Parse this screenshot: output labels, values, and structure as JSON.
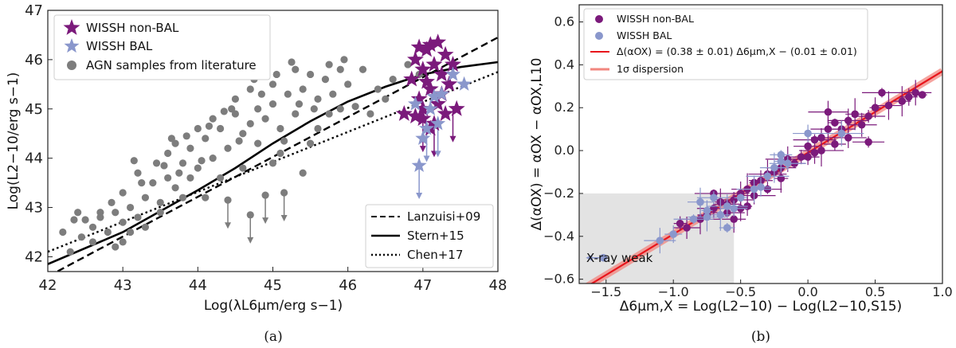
{
  "colors": {
    "nonbal": "#7b1a7b",
    "bal": "#8a97cc",
    "agn": "#7d7d7d",
    "fit": "#e8151c",
    "disp": "#f2867f",
    "xray_box": "#e3e3e3"
  },
  "chart_data": [
    {
      "type": "scatter",
      "panel_label": "(a)",
      "xlabel": "Log(λL6μm/erg s−1)",
      "ylabel": "Log(L2−10/erg s−1)",
      "xlim": [
        42,
        48
      ],
      "ylim": [
        41.7,
        47
      ],
      "xticks": [
        "42",
        "43",
        "44",
        "45",
        "46",
        "47",
        "48"
      ],
      "yticks": [
        "42",
        "43",
        "44",
        "45",
        "46",
        "47"
      ],
      "legend": [
        "WISSH non-BAL",
        "WISSH BAL",
        "AGN samples from literature"
      ],
      "lines_legend": [
        "Lanzuisi+09",
        "Stern+15",
        "Chen+17"
      ],
      "lines": [
        {
          "name": "Lanzuisi+09",
          "style": "dashed",
          "x": [
            42,
            48
          ],
          "y": [
            41.6,
            46.45
          ]
        },
        {
          "name": "Stern+15",
          "style": "solid",
          "x": [
            42,
            43,
            44,
            44.5,
            45,
            45.5,
            46,
            46.5,
            47,
            47.5,
            48
          ],
          "y": [
            41.85,
            42.5,
            43.35,
            43.8,
            44.3,
            44.75,
            45.15,
            45.45,
            45.7,
            45.85,
            45.95
          ]
        },
        {
          "name": "Chen+17",
          "style": "dotted",
          "x": [
            42,
            48
          ],
          "y": [
            42.1,
            45.75
          ]
        }
      ],
      "agn_upper_limits": [
        [
          44.4,
          43.15
        ],
        [
          44.9,
          43.25
        ],
        [
          44.7,
          42.85
        ],
        [
          45.15,
          43.3
        ]
      ],
      "series": [
        {
          "name": "AGN samples from literature",
          "marker": "circle",
          "points": [
            [
              42.3,
              42.1
            ],
            [
              42.45,
              42.4
            ],
            [
              42.4,
              42.9
            ],
            [
              42.6,
              42.6
            ],
            [
              42.7,
              42.8
            ],
            [
              42.5,
              42.75
            ],
            [
              42.8,
              42.5
            ],
            [
              42.9,
              42.9
            ],
            [
              43.0,
              42.7
            ],
            [
              42.85,
              43.1
            ],
            [
              43.1,
              43.0
            ],
            [
              43.2,
              42.8
            ],
            [
              43.0,
              43.3
            ],
            [
              43.3,
              43.2
            ],
            [
              43.1,
              42.5
            ],
            [
              43.4,
              43.5
            ],
            [
              43.5,
              43.1
            ],
            [
              43.6,
              43.6
            ],
            [
              43.2,
              43.7
            ],
            [
              43.45,
              43.9
            ],
            [
              43.7,
              43.4
            ],
            [
              43.8,
              43.9
            ],
            [
              43.9,
              43.6
            ],
            [
              43.6,
              44.1
            ],
            [
              43.7,
              44.3
            ],
            [
              43.9,
              44.2
            ],
            [
              44.0,
              43.8
            ],
            [
              44.1,
              44.4
            ],
            [
              44.2,
              44.0
            ],
            [
              44.0,
              44.6
            ],
            [
              44.3,
              44.6
            ],
            [
              44.4,
              44.2
            ],
            [
              44.2,
              44.8
            ],
            [
              44.5,
              44.9
            ],
            [
              44.6,
              44.5
            ],
            [
              44.7,
              44.7
            ],
            [
              44.5,
              45.2
            ],
            [
              44.8,
              45.0
            ],
            [
              44.9,
              44.8
            ],
            [
              44.7,
              45.4
            ],
            [
              45.0,
              45.1
            ],
            [
              45.1,
              44.6
            ],
            [
              45.0,
              45.5
            ],
            [
              45.2,
              45.3
            ],
            [
              45.3,
              44.9
            ],
            [
              45.4,
              45.4
            ],
            [
              45.5,
              45.7
            ],
            [
              45.6,
              45.2
            ],
            [
              45.3,
              45.8
            ],
            [
              45.7,
              45.6
            ],
            [
              45.8,
              45.3
            ],
            [
              45.9,
              45.8
            ],
            [
              45.6,
              44.6
            ],
            [
              45.5,
              44.3
            ],
            [
              45.4,
              43.7
            ],
            [
              45.1,
              44.1
            ],
            [
              45.0,
              43.9
            ],
            [
              44.8,
              44.3
            ],
            [
              44.6,
              43.8
            ],
            [
              44.3,
              43.6
            ],
            [
              44.1,
              43.2
            ],
            [
              43.8,
              43.2
            ],
            [
              43.5,
              42.9
            ],
            [
              43.3,
              42.6
            ],
            [
              42.9,
              42.2
            ],
            [
              42.6,
              42.3
            ],
            [
              43.0,
              42.3
            ],
            [
              42.7,
              42.9
            ],
            [
              43.25,
              43.5
            ],
            [
              43.55,
              43.85
            ],
            [
              43.85,
              44.45
            ],
            [
              44.15,
              44.65
            ],
            [
              44.45,
              45.0
            ],
            [
              44.75,
              45.6
            ],
            [
              45.05,
              45.7
            ],
            [
              45.25,
              45.95
            ],
            [
              45.75,
              45.9
            ],
            [
              46.0,
              45.5
            ],
            [
              46.2,
              45.8
            ],
            [
              46.4,
              45.4
            ],
            [
              46.5,
              45.2
            ],
            [
              46.6,
              45.6
            ],
            [
              46.3,
              44.9
            ],
            [
              46.1,
              45.05
            ],
            [
              45.9,
              45.0
            ],
            [
              46.8,
              45.9
            ],
            [
              46.95,
              45.7
            ],
            [
              45.95,
              46.0
            ],
            [
              42.2,
              42.5
            ],
            [
              42.35,
              42.75
            ],
            [
              43.15,
              43.95
            ],
            [
              43.65,
              44.4
            ],
            [
              44.35,
              44.95
            ],
            [
              44.85,
              45.3
            ],
            [
              45.35,
              45.1
            ],
            [
              45.55,
              45.0
            ],
            [
              45.75,
              44.9
            ],
            [
              45.15,
              44.35
            ],
            [
              44.55,
              44.35
            ],
            [
              44.05,
              43.95
            ],
            [
              43.75,
              43.7
            ]
          ]
        },
        {
          "name": "WISSH non-BAL",
          "marker": "star",
          "points": [
            [
              46.75,
              44.9
            ],
            [
              46.85,
              45.6
            ],
            [
              46.9,
              46.0
            ],
            [
              46.95,
              45.2
            ],
            [
              47.0,
              45.8
            ],
            [
              47.0,
              44.8
            ],
            [
              47.05,
              46.2
            ],
            [
              47.1,
              45.4
            ],
            [
              47.1,
              44.6
            ],
            [
              47.15,
              45.9
            ],
            [
              47.2,
              46.35
            ],
            [
              47.2,
              45.1
            ],
            [
              47.25,
              45.7
            ],
            [
              47.3,
              46.1
            ],
            [
              47.3,
              44.9
            ],
            [
              47.35,
              45.5
            ],
            [
              47.4,
              45.9
            ],
            [
              47.45,
              45.0
            ],
            [
              47.1,
              46.3
            ],
            [
              46.95,
              46.25
            ],
            [
              47.0,
              45.0
            ],
            [
              47.15,
              44.7
            ],
            [
              47.25,
              45.3
            ],
            [
              46.9,
              44.85
            ],
            [
              47.05,
              45.55
            ]
          ]
        },
        {
          "name": "WISSH BAL",
          "marker": "star",
          "points": [
            [
              46.95,
              43.85
            ],
            [
              47.0,
              44.4
            ],
            [
              47.05,
              44.6
            ],
            [
              47.1,
              45.0
            ],
            [
              47.2,
              44.7
            ],
            [
              47.25,
              45.3
            ],
            [
              47.4,
              45.7
            ],
            [
              47.55,
              45.5
            ],
            [
              46.9,
              45.1
            ],
            [
              47.15,
              45.25
            ]
          ]
        }
      ],
      "upper_limit_points": [
        [
          47.0,
          44.8
        ],
        [
          47.15,
          44.7
        ],
        [
          47.4,
          45.0
        ],
        [
          46.95,
          43.85
        ],
        [
          47.05,
          44.6
        ],
        [
          47.2,
          44.7
        ]
      ]
    },
    {
      "type": "scatter",
      "panel_label": "(b)",
      "xlabel": "Δ6μm,X = Log(L2−10) − Log(L2−10,S15)",
      "ylabel": "Δ(αOX) = αOX − αOX,L10",
      "xlim": [
        -1.7,
        1.0
      ],
      "ylim": [
        -0.62,
        0.68
      ],
      "xticks": [
        "−1.5",
        "−1.0",
        "−0.5",
        "0.0",
        "0.5",
        "1.0"
      ],
      "yticks": [
        "−0.6",
        "−0.4",
        "−0.2",
        "0.0",
        "0.2",
        "0.4",
        "0.6"
      ],
      "legend": [
        "WISSH non-BAL",
        "WISSH BAL",
        "Δ(αOX) = (0.38 ± 0.01) Δ6μm,X − (0.01 ± 0.01)",
        "1σ dispersion"
      ],
      "annotation": "X-ray weak",
      "xray_weak_region": {
        "x": [
          -1.7,
          -0.55
        ],
        "y": [
          -0.62,
          -0.2
        ]
      },
      "fit": {
        "slope": 0.38,
        "intercept": -0.01
      },
      "series": [
        {
          "name": "WISSH non-BAL",
          "marker": "circle",
          "points": [
            [
              0.85,
              0.26
            ],
            [
              0.8,
              0.27
            ],
            [
              0.75,
              0.25
            ],
            [
              0.55,
              0.27
            ],
            [
              0.6,
              0.21
            ],
            [
              0.5,
              0.2
            ],
            [
              0.45,
              0.16
            ],
            [
              0.35,
              0.17
            ],
            [
              0.3,
              0.14
            ],
            [
              0.25,
              0.1
            ],
            [
              0.2,
              0.13
            ],
            [
              0.15,
              0.1
            ],
            [
              0.1,
              0.06
            ],
            [
              0.05,
              0.05
            ],
            [
              0.0,
              0.02
            ],
            [
              0.05,
              -0.01
            ],
            [
              -0.05,
              -0.03
            ],
            [
              -0.1,
              -0.06
            ],
            [
              -0.15,
              -0.04
            ],
            [
              -0.2,
              -0.08
            ],
            [
              -0.25,
              -0.1
            ],
            [
              -0.3,
              -0.11
            ],
            [
              -0.35,
              -0.14
            ],
            [
              -0.4,
              -0.15
            ],
            [
              -0.45,
              -0.18
            ],
            [
              -0.5,
              -0.2
            ],
            [
              -0.55,
              -0.23
            ],
            [
              -0.6,
              -0.25
            ],
            [
              -0.65,
              -0.24
            ],
            [
              -0.7,
              -0.27
            ],
            [
              -0.75,
              -0.3
            ],
            [
              -0.8,
              -0.32
            ],
            [
              -0.9,
              -0.36
            ],
            [
              -0.95,
              -0.34
            ],
            [
              -0.6,
              -0.29
            ],
            [
              -0.5,
              -0.27
            ],
            [
              -0.4,
              -0.21
            ],
            [
              -0.3,
              -0.18
            ],
            [
              -0.2,
              -0.13
            ],
            [
              0.3,
              0.06
            ],
            [
              0.2,
              0.03
            ],
            [
              0.1,
              0.0
            ],
            [
              0.4,
              0.12
            ],
            [
              0.0,
              -0.03
            ],
            [
              -0.7,
              -0.2
            ],
            [
              -0.55,
              -0.32
            ],
            [
              -0.45,
              -0.26
            ],
            [
              0.45,
              0.04
            ],
            [
              0.7,
              0.23
            ],
            [
              0.15,
              0.18
            ]
          ]
        },
        {
          "name": "WISSH BAL",
          "marker": "circle",
          "points": [
            [
              -1.52,
              -0.5
            ],
            [
              -1.1,
              -0.42
            ],
            [
              -1.0,
              -0.39
            ],
            [
              -0.85,
              -0.32
            ],
            [
              -0.8,
              -0.24
            ],
            [
              -0.75,
              -0.28
            ],
            [
              -0.7,
              -0.22
            ],
            [
              -0.65,
              -0.3
            ],
            [
              -0.6,
              -0.26
            ],
            [
              -0.55,
              -0.27
            ],
            [
              -0.5,
              -0.22
            ],
            [
              -0.4,
              -0.18
            ],
            [
              -0.35,
              -0.17
            ],
            [
              -0.3,
              -0.12
            ],
            [
              -0.25,
              -0.08
            ],
            [
              -0.2,
              -0.05
            ],
            [
              -0.15,
              -0.06
            ],
            [
              -0.2,
              -0.02
            ],
            [
              0.25,
              0.08
            ],
            [
              0.0,
              0.08
            ],
            [
              -0.6,
              -0.36
            ],
            [
              -0.75,
              -0.31
            ]
          ]
        }
      ]
    }
  ]
}
